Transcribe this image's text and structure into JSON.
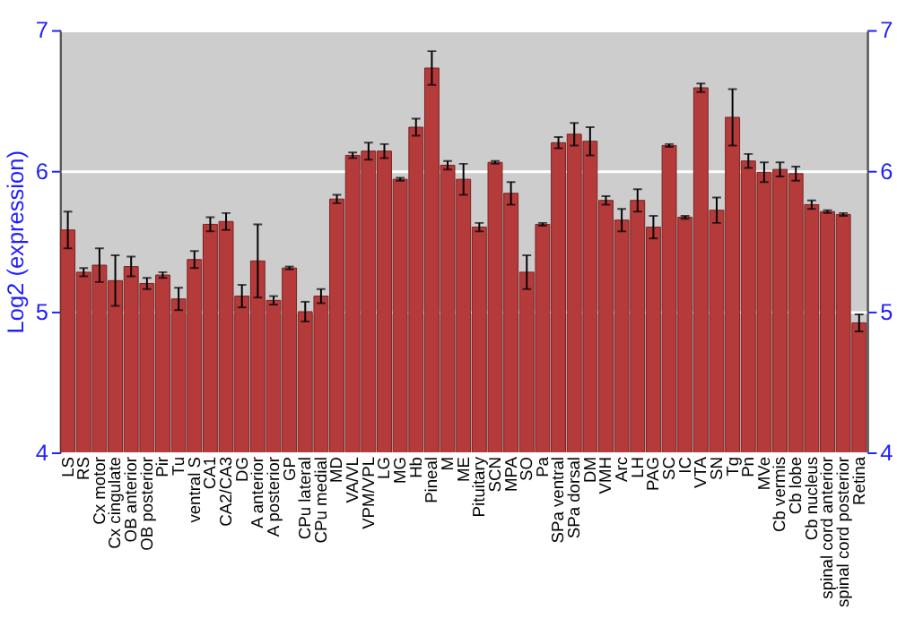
{
  "chart_data": {
    "type": "bar",
    "ylabel": "Log2 (expression)",
    "categories": [
      "LS",
      "RS",
      "Cx motor",
      "Cx cingulate",
      "OB anterior",
      "OB posterior",
      "Pir",
      "Tu",
      "ventral S",
      "CA1",
      "CA2/CA3",
      "DG",
      "A anterior",
      "A posterior",
      "GP",
      "CPu lateral",
      "CPu medial",
      "MD",
      "VA/VL",
      "VPM/VPL",
      "LG",
      "MG",
      "Hb",
      "Pineal",
      "M",
      "ME",
      "Pituitary",
      "SCN",
      "MPA",
      "SO",
      "Pa",
      "SPa ventral",
      "SPa dorsal",
      "DM",
      "VMH",
      "Arc",
      "LH",
      "PAG",
      "SC",
      "IC",
      "VTA",
      "SN",
      "Tg",
      "Pn",
      "MVe",
      "Cb vermis",
      "Cb lobe",
      "Cb nucleus",
      "spinal cord anterior",
      "spinal cord posterior",
      "Retina"
    ],
    "values": [
      5.58,
      5.28,
      5.33,
      5.22,
      5.32,
      5.2,
      5.26,
      5.09,
      5.37,
      5.62,
      5.64,
      5.11,
      5.36,
      5.08,
      5.31,
      5.0,
      5.11,
      5.8,
      6.11,
      6.14,
      6.14,
      5.94,
      6.31,
      6.73,
      6.04,
      5.94,
      5.6,
      6.06,
      5.84,
      5.28,
      5.62,
      6.2,
      6.26,
      6.21,
      5.79,
      5.65,
      5.79,
      5.6,
      6.18,
      5.67,
      6.59,
      5.72,
      6.38,
      6.07,
      5.99,
      6.01,
      5.98,
      5.76,
      5.71,
      5.69,
      4.92
    ],
    "errors": [
      0.13,
      0.03,
      0.12,
      0.18,
      0.07,
      0.04,
      0.02,
      0.08,
      0.06,
      0.05,
      0.06,
      0.08,
      0.26,
      0.03,
      0.01,
      0.07,
      0.05,
      0.03,
      0.02,
      0.06,
      0.05,
      0.01,
      0.06,
      0.12,
      0.03,
      0.11,
      0.03,
      0.01,
      0.08,
      0.12,
      0.01,
      0.04,
      0.08,
      0.1,
      0.03,
      0.08,
      0.08,
      0.08,
      0.01,
      0.01,
      0.03,
      0.09,
      0.2,
      0.05,
      0.07,
      0.05,
      0.05,
      0.03,
      0.01,
      0.01,
      0.06
    ],
    "color": "#b53b3b",
    "ylim": [
      4,
      7
    ],
    "yticks": [
      4,
      5,
      6,
      7
    ],
    "y2lim": [
      4,
      7
    ],
    "y2ticks": [
      4,
      5,
      6,
      7
    ],
    "grid": "y"
  }
}
